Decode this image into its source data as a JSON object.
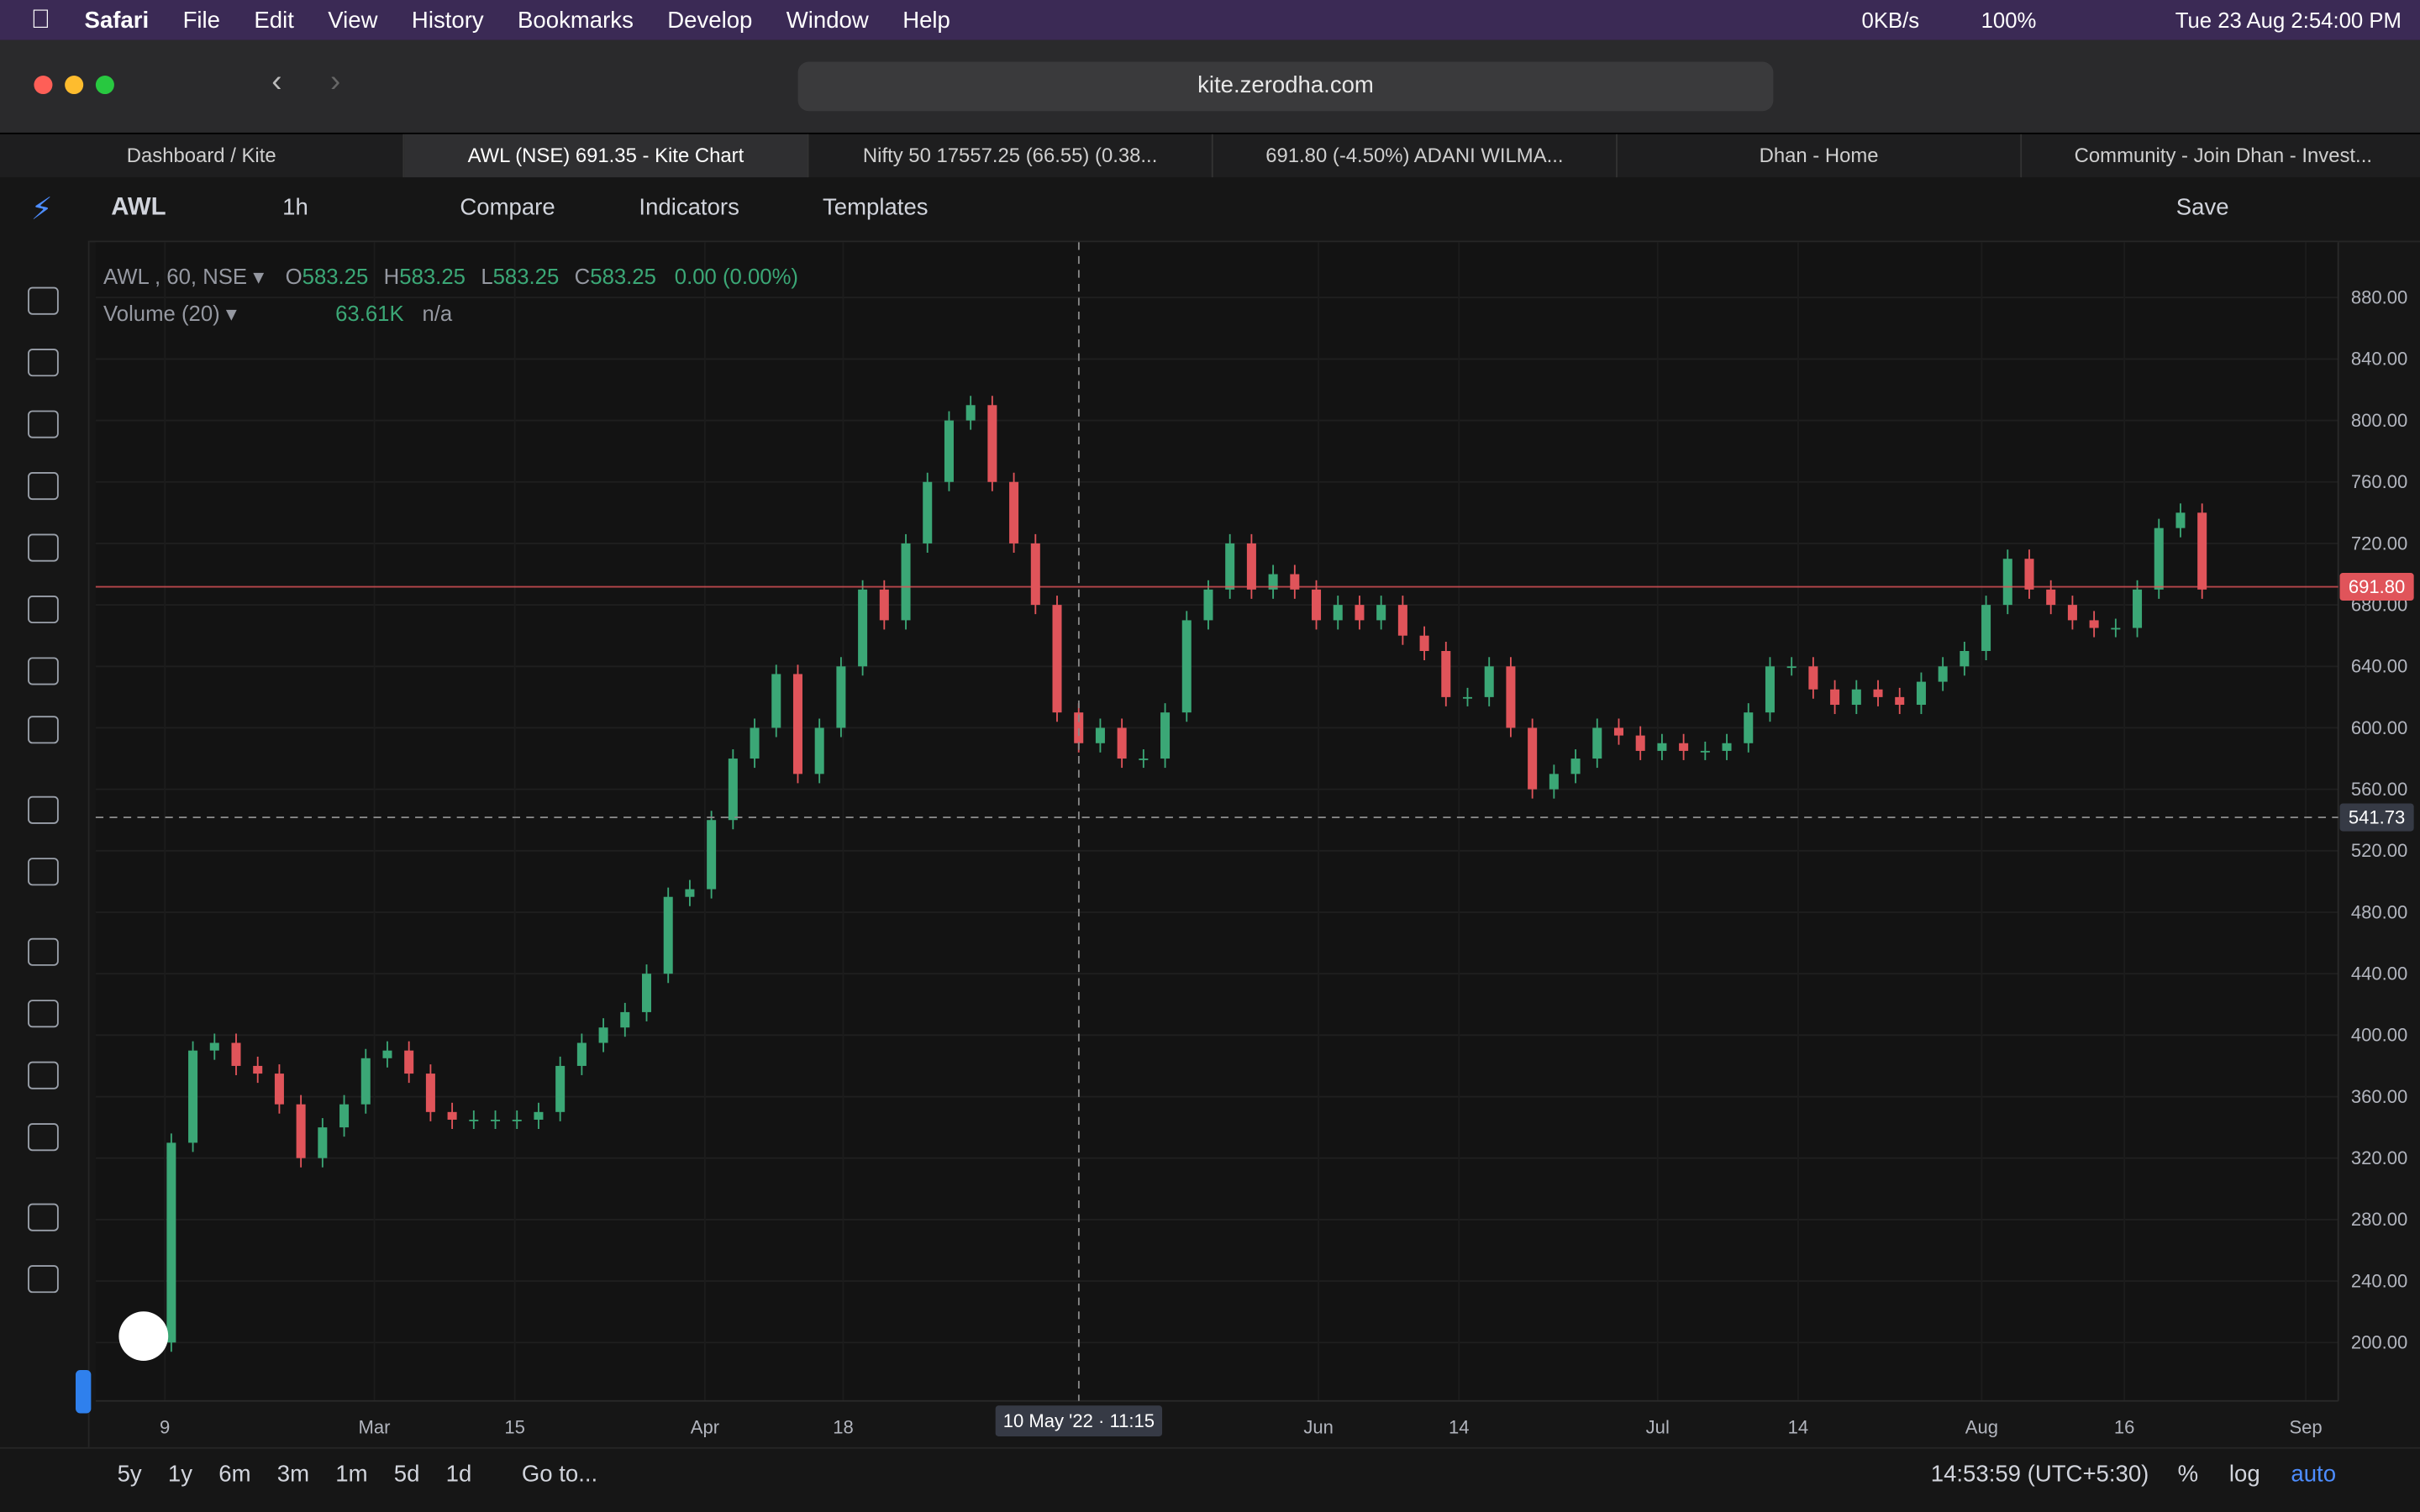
{
  "menu_bar": {
    "app": "Safari",
    "items": [
      "File",
      "Edit",
      "View",
      "History",
      "Bookmarks",
      "Develop",
      "Window",
      "Help"
    ],
    "network": "0KB/s",
    "battery": "100%",
    "datetime": "Tue 23 Aug  2:54:00 PM"
  },
  "browser": {
    "url": "kite.zerodha.com",
    "tabs": [
      "Dashboard / Kite",
      "AWL (NSE) 691.35 - Kite Chart",
      "Nifty 50 17557.25 (66.55) (0.38...",
      "691.80 (-4.50%) ADANI WILMA...",
      "Dhan - Home",
      "Community - Join Dhan - Invest..."
    ]
  },
  "toolbar": {
    "symbol": "AWL",
    "interval": "1h",
    "buttons": [
      "Compare",
      "Indicators",
      "Templates"
    ],
    "save": "Save"
  },
  "legend": {
    "series": "AWL , 60, NSE",
    "ohlc": [
      {
        "label": "O",
        "value": "583.25"
      },
      {
        "label": "H",
        "value": "583.25"
      },
      {
        "label": "L",
        "value": "583.25"
      },
      {
        "label": "C",
        "value": "583.25"
      }
    ],
    "change": "0.00 (0.00%)",
    "volume": "Volume (20)",
    "volume_value": "63.61K",
    "volume_extra": "n/a"
  },
  "chart_data": {
    "type": "candlestick",
    "values": [
      200,
      330,
      390,
      395,
      380,
      375,
      355,
      320,
      340,
      355,
      385,
      390,
      375,
      350,
      345,
      345,
      345,
      345,
      350,
      380,
      395,
      405,
      415,
      440,
      490,
      495,
      540,
      580,
      600,
      635,
      570,
      600,
      640,
      690,
      670,
      720,
      760,
      800,
      810,
      760,
      720,
      680,
      610,
      590,
      600,
      580,
      580,
      610,
      670,
      690,
      720,
      690,
      700,
      690,
      670,
      680,
      670,
      680,
      660,
      650,
      620,
      620,
      640,
      600,
      560,
      570,
      580,
      600,
      595,
      585,
      590,
      585,
      585,
      590,
      610,
      640,
      640,
      625,
      615,
      625,
      620,
      615,
      630,
      640,
      650,
      680,
      710,
      690,
      680,
      670,
      665,
      665,
      690,
      730,
      740,
      690
    ],
    "up_color": "#3ba776",
    "down_color": "#e0545a",
    "xlim": [
      -2.5,
      101.3
    ],
    "xticks": [
      {
        "value": 0.7,
        "label": "9"
      },
      {
        "value": 10.4,
        "label": "Mar"
      },
      {
        "value": 16.9,
        "label": "15"
      },
      {
        "value": 25.7,
        "label": "Apr"
      },
      {
        "value": 32.1,
        "label": "18"
      },
      {
        "value": 54.1,
        "label": "Jun"
      },
      {
        "value": 60.6,
        "label": "14"
      },
      {
        "value": 69.8,
        "label": "Jul"
      },
      {
        "value": 76.3,
        "label": "14"
      },
      {
        "value": 84.8,
        "label": "Aug"
      },
      {
        "value": 91.4,
        "label": "16"
      },
      {
        "value": 99.8,
        "label": "Sep"
      }
    ],
    "ylim": [
      162,
      916
    ],
    "yticks": [
      {
        "value": 200,
        "label": "200.00"
      },
      {
        "value": 240,
        "label": "240.00"
      },
      {
        "value": 280,
        "label": "280.00"
      },
      {
        "value": 320,
        "label": "320.00"
      },
      {
        "value": 360,
        "label": "360.00"
      },
      {
        "value": 400,
        "label": "400.00"
      },
      {
        "value": 440,
        "label": "440.00"
      },
      {
        "value": 480,
        "label": "480.00"
      },
      {
        "value": 520,
        "label": "520.00"
      },
      {
        "value": 560,
        "label": "560.00"
      },
      {
        "value": 600,
        "label": "600.00"
      },
      {
        "value": 640,
        "label": "640.00"
      },
      {
        "value": 680,
        "label": "680.00"
      },
      {
        "value": 720,
        "label": "720.00"
      },
      {
        "value": 760,
        "label": "760.00"
      },
      {
        "value": 800,
        "label": "800.00"
      },
      {
        "value": 840,
        "label": "840.00"
      },
      {
        "value": 880,
        "label": "880.00"
      }
    ],
    "grid": true,
    "last_price": {
      "value": 691.8,
      "label": "691.80",
      "color": "#e0545a"
    },
    "crosshair": {
      "value": 541.73,
      "label": "541.73",
      "time_label": "10 May '22 · 11:15"
    }
  },
  "bottom_bar": {
    "ranges": [
      "5y",
      "1y",
      "6m",
      "3m",
      "1m",
      "5d",
      "1d"
    ],
    "goto": "Go to...",
    "clock": "14:53:59 (UTC+5:30)",
    "options": [
      "%",
      "log",
      "auto"
    ]
  }
}
